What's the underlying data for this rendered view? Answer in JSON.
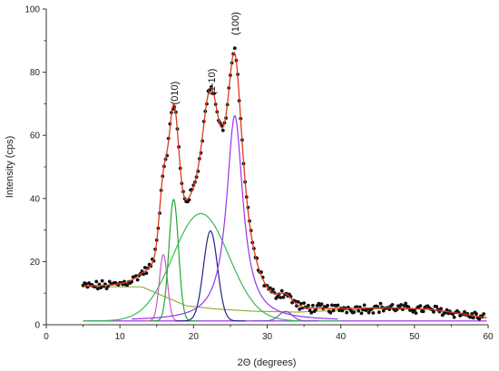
{
  "chart_data": {
    "type": "line",
    "xlabel": "2Θ (degrees)",
    "ylabel": "Intensity (cps)",
    "xlim": [
      0,
      60
    ],
    "ylim": [
      0,
      100
    ],
    "x_ticks": [
      0,
      10,
      20,
      30,
      40,
      50,
      60
    ],
    "y_ticks": [
      0,
      20,
      40,
      60,
      80,
      100
    ],
    "grid": false,
    "annotations": [
      {
        "text": "(010)",
        "x": 17.4,
        "y": 68
      },
      {
        "text": "(1-10)",
        "x": 22.4,
        "y": 71
      },
      {
        "text": "(100)",
        "x": 25.6,
        "y": 90
      }
    ],
    "peaks": [
      {
        "shape": "gaussian",
        "center": 15.9,
        "height": 21,
        "width": 0.55,
        "color": "#cc55cc"
      },
      {
        "shape": "gaussian",
        "center": 17.3,
        "height": 38.5,
        "width": 0.65,
        "color": "#22aa33"
      },
      {
        "shape": "gaussian",
        "center": 21.0,
        "height": 34,
        "width": 3.8,
        "color": "#33bb55"
      },
      {
        "shape": "gaussian",
        "center": 22.3,
        "height": 28.5,
        "width": 0.95,
        "color": "#222288"
      },
      {
        "shape": "lorentzian",
        "center": 25.6,
        "height": 65,
        "width": 1.35,
        "color": "#9933ee"
      },
      {
        "shape": "gaussian",
        "center": 32.5,
        "height": 3,
        "width": 0.9,
        "color": "#8844cc"
      }
    ],
    "broad_component": {
      "color": "#88aa33",
      "points": [
        [
          13,
          12
        ],
        [
          16,
          9
        ],
        [
          19,
          6
        ],
        [
          23,
          5
        ],
        [
          28,
          4.3
        ],
        [
          34,
          4
        ],
        [
          40,
          4.6
        ],
        [
          46,
          5.1
        ],
        [
          52,
          4.8
        ],
        [
          56,
          3.5
        ],
        [
          59.5,
          2.2
        ]
      ]
    },
    "baseline_y": 1.2,
    "fit_color": "#e03a1e",
    "data_points_color": "#111111",
    "component_base_color": "#aa44ee"
  }
}
